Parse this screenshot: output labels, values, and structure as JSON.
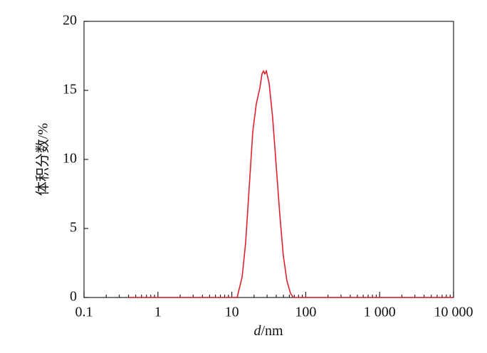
{
  "chart_data": {
    "type": "line",
    "x_label": "d/nm",
    "y_label": "体积分数/%",
    "x_scale": "log",
    "x": [
      0.4,
      1,
      10,
      11.8,
      13.8,
      15.4,
      17.2,
      19.2,
      21.4,
      24.0,
      25.6,
      26.8,
      28.0,
      29.3,
      32.0,
      35.7,
      39.9,
      44.6,
      49.8,
      55.7,
      62.2,
      67.9,
      100,
      1000,
      10000
    ],
    "series": [
      {
        "color": "#e0202a",
        "values": [
          0,
          0,
          0,
          0,
          1.5,
          4,
          8,
          12,
          14,
          15.2,
          16.2,
          16.4,
          16.2,
          16.4,
          15.5,
          13,
          9.5,
          6,
          3,
          1.2,
          0.3,
          0,
          0,
          0,
          0
        ]
      }
    ],
    "xlim": [
      0.1,
      10000
    ],
    "xticks": [
      0.1,
      1,
      10,
      100,
      {
        "value": 1000,
        "label": "1 000"
      },
      {
        "value": 10000,
        "label": "10 000"
      }
    ],
    "ylim": [
      0,
      20
    ],
    "yticks": [
      0,
      5,
      10,
      15,
      20
    ]
  }
}
